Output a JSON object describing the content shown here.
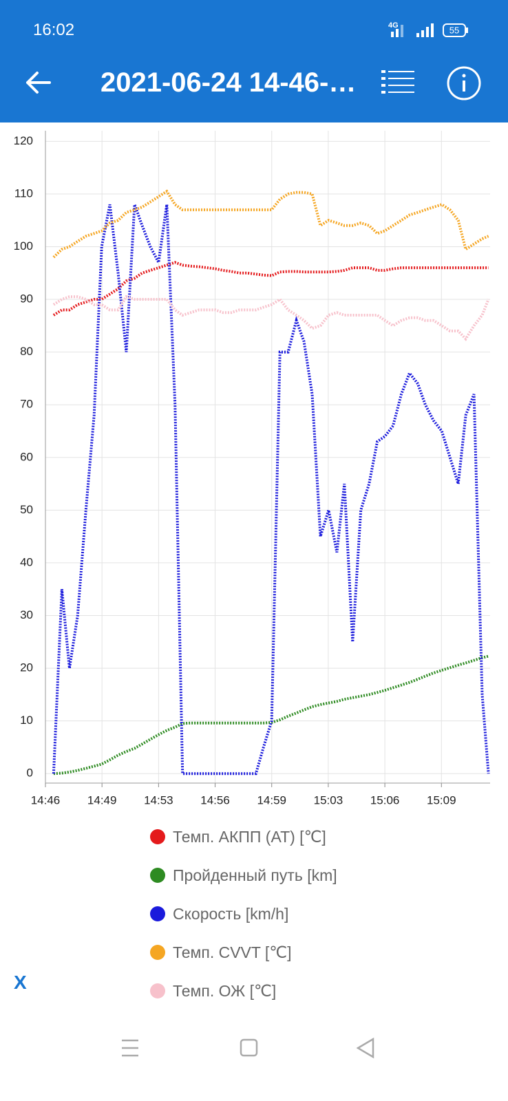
{
  "status_bar": {
    "time": "16:02",
    "network": "4G",
    "battery": "55"
  },
  "header": {
    "title": "2021-06-24 14-46-…"
  },
  "chart_data": {
    "type": "line",
    "x": [
      886.8,
      887.29,
      887.74,
      888.23,
      888.72,
      889.21,
      889.66,
      890.15,
      890.64,
      891.13,
      891.62,
      892.07,
      892.56,
      893.05,
      893.54,
      894.03,
      894.48,
      894.97,
      895.46,
      895.95,
      896.44,
      896.89,
      897.38,
      897.87,
      898.36,
      898.85,
      899.3,
      899.79,
      900.28,
      900.77,
      901.26,
      901.71,
      902.2,
      902.69,
      903.18,
      903.67,
      904.12,
      904.61,
      905.1,
      905.59,
      906.08,
      906.53,
      907.02,
      907.51,
      908.0,
      908.49,
      908.94,
      909.43,
      909.92,
      910.41,
      910.9,
      911.35,
      911.84,
      912.33,
      912.7
    ],
    "xlim": [
      886.31,
      912.8
    ],
    "xticks": [
      {
        "value": 886.31,
        "label": "14:46"
      },
      {
        "value": 889.68,
        "label": "14:49"
      },
      {
        "value": 893.05,
        "label": "14:53"
      },
      {
        "value": 896.42,
        "label": "14:56"
      },
      {
        "value": 899.79,
        "label": "14:59"
      },
      {
        "value": 903.16,
        "label": "15:03"
      },
      {
        "value": 906.53,
        "label": "15:06"
      },
      {
        "value": 909.9,
        "label": "15:09"
      }
    ],
    "ylim": [
      -1.8,
      122
    ],
    "yticks": [
      0,
      10,
      20,
      30,
      40,
      50,
      60,
      70,
      80,
      90,
      100,
      110,
      120
    ],
    "grid": true,
    "series": [
      {
        "name": "Темп. АКПП (AT) [℃]",
        "color": "#e41a1c",
        "values": [
          87,
          88,
          88,
          89,
          89.5,
          90,
          90,
          91,
          92,
          93.5,
          94,
          95,
          95.5,
          96,
          96.5,
          97,
          96.5,
          96.3,
          96.2,
          96,
          95.8,
          95.5,
          95.3,
          95,
          95,
          94.8,
          94.6,
          94.5,
          95.2,
          95.3,
          95.3,
          95.2,
          95.2,
          95.2,
          95.2,
          95.3,
          95.5,
          96,
          96,
          96,
          95.5,
          95.5,
          95.8,
          96,
          96,
          96,
          96,
          96,
          96,
          96,
          96,
          96,
          96,
          96,
          96
        ]
      },
      {
        "name": "Пройденный путь [km]",
        "color": "#2e8b22",
        "values": [
          0,
          0.1,
          0.3,
          0.6,
          1,
          1.4,
          1.8,
          2.6,
          3.5,
          4.2,
          4.8,
          5.6,
          6.5,
          7.4,
          8.2,
          8.8,
          9.5,
          9.6,
          9.6,
          9.6,
          9.6,
          9.6,
          9.6,
          9.6,
          9.6,
          9.6,
          9.6,
          9.7,
          10.2,
          10.9,
          11.5,
          12.1,
          12.7,
          13.1,
          13.4,
          13.7,
          14.1,
          14.4,
          14.7,
          15.0,
          15.4,
          15.8,
          16.3,
          16.8,
          17.3,
          17.9,
          18.5,
          19.1,
          19.6,
          20.1,
          20.6,
          21.0,
          21.5,
          22.0,
          22.3
        ]
      },
      {
        "name": "Скорость [km/h]",
        "color": "#1a1adc",
        "values": [
          0,
          35,
          20,
          30,
          50,
          68,
          100,
          108,
          95,
          80,
          108,
          104,
          100,
          97,
          108,
          70,
          0,
          0,
          0,
          0,
          0,
          0,
          0,
          0,
          0,
          0,
          5,
          10,
          80,
          80,
          86,
          82,
          72,
          45,
          50,
          42,
          55,
          25,
          50,
          55,
          63,
          64,
          66,
          72,
          76,
          74,
          70,
          67,
          65,
          60,
          55,
          68,
          72,
          15,
          0
        ]
      },
      {
        "name": "Темп. CVVT [℃]",
        "color": "#f5a623",
        "values": [
          98,
          99.5,
          100,
          101,
          102,
          102.5,
          103,
          104.5,
          105,
          106.5,
          107,
          107.5,
          108.5,
          109.5,
          110.5,
          108,
          107,
          107,
          107,
          107,
          107,
          107,
          107,
          107,
          107,
          107,
          107,
          107,
          109,
          110,
          110.3,
          110.3,
          110,
          104,
          105,
          104.5,
          104,
          104,
          104.5,
          104,
          102.5,
          103,
          104,
          105,
          106,
          106.5,
          107,
          107.5,
          108,
          107,
          105,
          99.5,
          100.5,
          101.5,
          102
        ]
      },
      {
        "name": "Темп. ОЖ [℃]",
        "color": "#f7c1cb",
        "values": [
          89,
          90,
          90.5,
          90.5,
          90,
          89,
          89,
          88,
          88,
          90.5,
          90,
          90,
          90,
          90,
          90,
          88,
          87,
          87.5,
          88,
          88,
          88,
          87.5,
          87.5,
          88,
          88,
          88,
          88.5,
          89,
          90,
          88,
          87,
          86,
          84.5,
          85,
          87,
          87.5,
          87,
          87,
          87,
          87,
          87,
          86,
          85,
          86,
          86.5,
          86.5,
          86,
          86,
          85,
          84,
          84,
          82.5,
          85,
          87,
          90
        ]
      }
    ]
  },
  "close_button": {
    "label": "X"
  }
}
